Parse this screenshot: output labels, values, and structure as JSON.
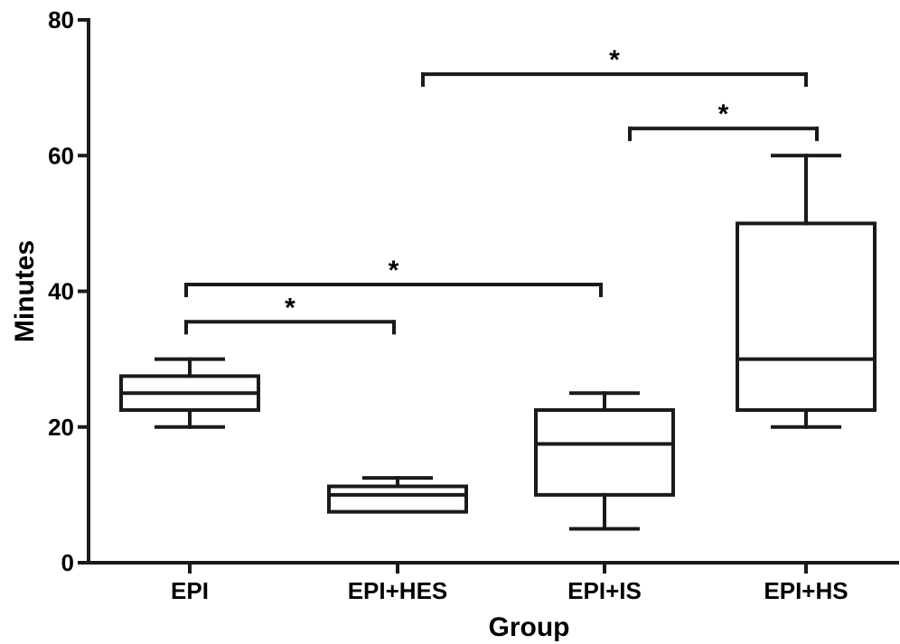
{
  "chart_data": {
    "type": "box",
    "title": "",
    "xlabel": "Group",
    "ylabel": "Minutes",
    "ylim": [
      0,
      80
    ],
    "yticks": [
      0,
      20,
      40,
      60,
      80
    ],
    "grid": false,
    "categories": [
      "EPI",
      "EPI+HES",
      "EPI+IS",
      "EPI+HS"
    ],
    "boxes": [
      {
        "category": "EPI",
        "min": 20,
        "q1": 22.5,
        "median": 25,
        "q3": 27.5,
        "max": 30
      },
      {
        "category": "EPI+HES",
        "min": 7.5,
        "q1": 7.5,
        "median": 10,
        "q3": 11.25,
        "max": 12.5
      },
      {
        "category": "EPI+IS",
        "min": 5,
        "q1": 10,
        "median": 17.5,
        "q3": 22.5,
        "max": 25
      },
      {
        "category": "EPI+HS",
        "min": 20,
        "q1": 22.5,
        "median": 30,
        "q3": 50,
        "max": 60
      }
    ],
    "significance": [
      {
        "from": "EPI",
        "to": "EPI+HES",
        "y": 35.5,
        "label": "*"
      },
      {
        "from": "EPI",
        "to": "EPI+IS",
        "y": 41,
        "label": "*"
      },
      {
        "from": "EPI+IS",
        "to": "EPI+HS",
        "y": 64,
        "label": "*"
      },
      {
        "from": "EPI+HES",
        "to": "EPI+HS",
        "y": 72,
        "label": "*"
      }
    ],
    "colors": {
      "ink": "#1a1a1a",
      "background": "#ffffff"
    }
  }
}
